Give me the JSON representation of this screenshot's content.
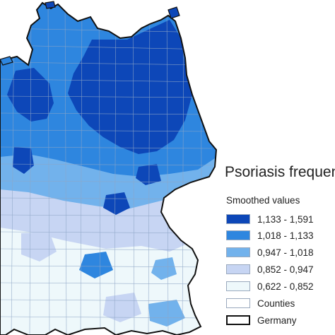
{
  "legend": {
    "title": "Psoriasis frequen",
    "subtitle": "Smoothed values",
    "classes": [
      {
        "label": "1,133 - 1,591",
        "color": "#0d47b8"
      },
      {
        "label": "1,018 - 1,133",
        "color": "#2e86df"
      },
      {
        "label": "0,947 - 1,018",
        "color": "#72b2ec"
      },
      {
        "label": "0,852 - 0,947",
        "color": "#c7d5f3"
      },
      {
        "label": "0,622 - 0,852",
        "color": "#eef8fb"
      }
    ],
    "counties_label": "Counties",
    "counties_color": "#ffffff",
    "germany_label": "Germany"
  }
}
